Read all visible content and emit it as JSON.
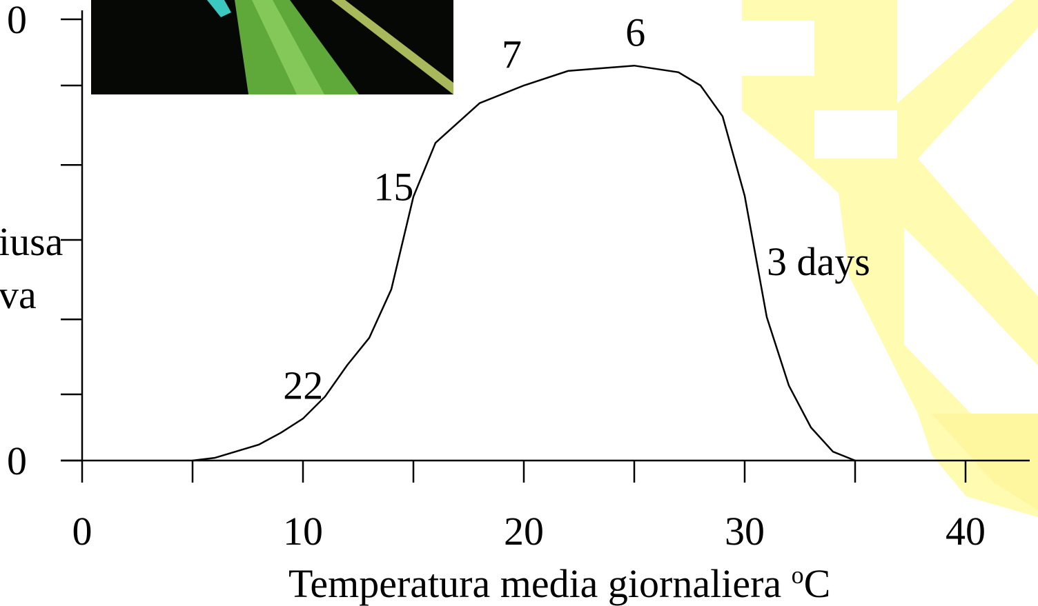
{
  "chart_data": {
    "type": "line",
    "xlabel": "Temperatura media giornaliera",
    "xlabel_sup": "o",
    "xlabel_unit": "C",
    "ylabel_lines": [
      "iusa",
      "va"
    ],
    "xlim": [
      0,
      43
    ],
    "xticks": [
      0,
      5,
      10,
      15,
      20,
      25,
      30,
      35,
      40
    ],
    "xtick_labels_at": [
      0,
      10,
      20,
      30,
      40
    ],
    "ylim": [
      0,
      100
    ],
    "yticks": [
      {
        "value": 0,
        "label": "0"
      },
      15,
      32,
      50,
      67,
      85,
      {
        "value": 100,
        "label": "0"
      }
    ],
    "series": [
      {
        "color": "#000000",
        "x": [
          5,
          6,
          8,
          9,
          10,
          11,
          12,
          13,
          14,
          15,
          16,
          18,
          20,
          22,
          25,
          27,
          28,
          29,
          30,
          31,
          32,
          33,
          34,
          35
        ],
        "values": [
          0,
          0.6,
          3.6,
          6.3,
          9.5,
          14.5,
          21.6,
          27.8,
          38.8,
          59.8,
          72,
          81,
          85,
          88.3,
          89.5,
          88,
          85,
          78,
          60,
          32.5,
          17,
          7.5,
          2,
          0
        ]
      }
    ],
    "annotations": [
      {
        "text": "22",
        "x": 9.1,
        "y": 14
      },
      {
        "text": "15",
        "x": 13.2,
        "y": 59
      },
      {
        "text": "7",
        "x": 19,
        "y": 89
      },
      {
        "text": "6",
        "x": 24.6,
        "y": 94
      },
      {
        "text": "3 days",
        "x": 31,
        "y": 42
      }
    ]
  }
}
